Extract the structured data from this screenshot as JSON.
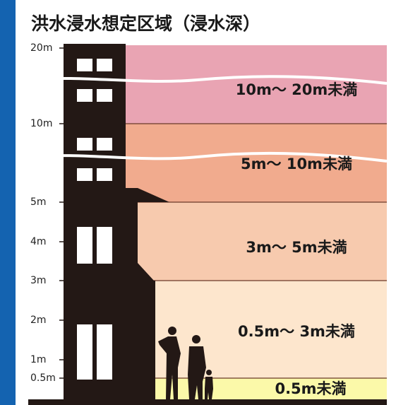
{
  "title": "洪水浸水想定区域（浸水深）",
  "scale": [
    "20m",
    "10m",
    "5m",
    "4m",
    "3m",
    "2m",
    "1m",
    "0.5m"
  ],
  "bands": [
    "10m～ 20m未満",
    "5m～ 10m未満",
    "3m～ 5m未満",
    "0.5m～ 3m未満",
    "0.5m未満"
  ]
}
